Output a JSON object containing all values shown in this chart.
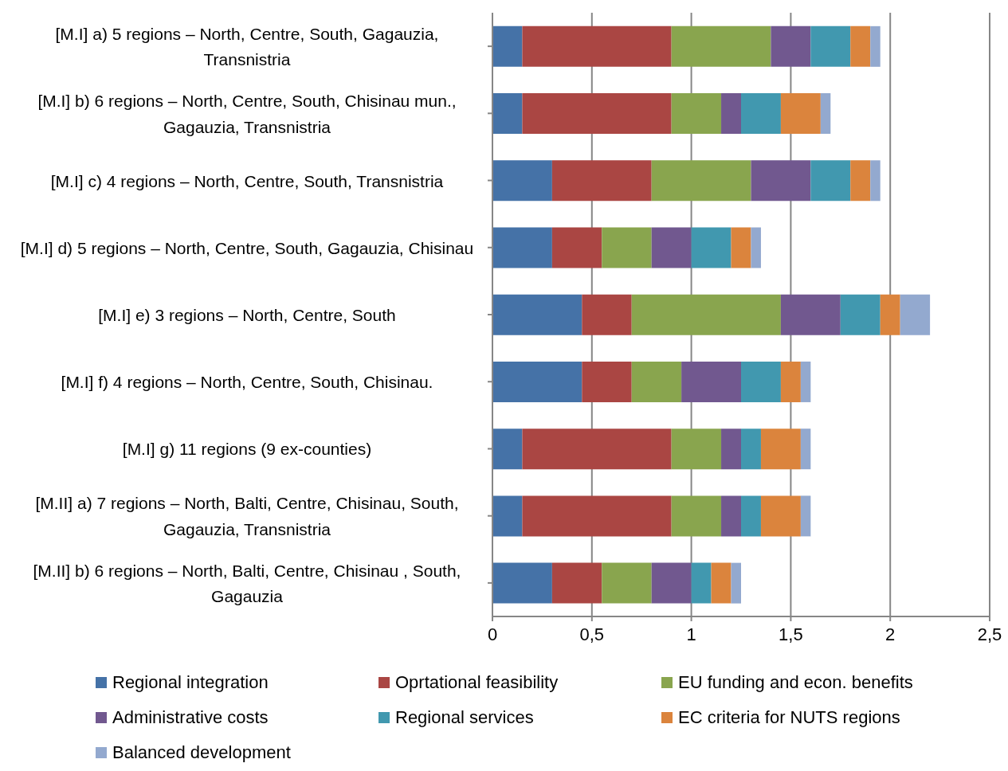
{
  "chart_data": {
    "type": "bar",
    "orientation": "horizontal",
    "stacked": true,
    "categories": [
      "[M.I]  a) 5 regions – North, Centre, South,  Gagauzia, Transnistria",
      "[M.I] b)  6 regions – North, Centre, South, Chisinau mun., Gagauzia, Transnistria",
      "[M.I] c)  4 regions – North, Centre, South, Transnistria",
      "[M.I] d)  5 regions – North, Centre, South, Gagauzia, Chisinau",
      "[M.I] e)  3 regions – North, Centre, South",
      "[M.I] f)   4 regions – North, Centre, South, Chisinau.",
      "[M.I] g)  11 regions (9 ex-counties)",
      "[M.II] a) 7 regions – North, Balti, Centre, Chisinau, South, Gagauzia, Transnistria",
      "[M.II]  b) 6 regions – North, Balti, Centre, Chisinau , South, Gagauzia"
    ],
    "series": [
      {
        "name": "Regional integration",
        "color": "#4572a7",
        "values": [
          0.15,
          0.15,
          0.3,
          0.3,
          0.45,
          0.45,
          0.15,
          0.15,
          0.3
        ]
      },
      {
        "name": "Oprtational feasibility",
        "color": "#aa4643",
        "values": [
          0.75,
          0.75,
          0.5,
          0.25,
          0.25,
          0.25,
          0.75,
          0.75,
          0.25
        ]
      },
      {
        "name": "EU funding and econ. benefits",
        "color": "#89a54e",
        "values": [
          0.5,
          0.25,
          0.5,
          0.25,
          0.75,
          0.25,
          0.25,
          0.25,
          0.25
        ]
      },
      {
        "name": "Administrative costs",
        "color": "#71588f",
        "values": [
          0.2,
          0.1,
          0.3,
          0.2,
          0.3,
          0.3,
          0.1,
          0.1,
          0.2
        ]
      },
      {
        "name": "Regional services",
        "color": "#4198af",
        "values": [
          0.2,
          0.2,
          0.2,
          0.2,
          0.2,
          0.2,
          0.1,
          0.1,
          0.1
        ]
      },
      {
        "name": "EC criteria for NUTS regions",
        "color": "#db843d",
        "values": [
          0.1,
          0.2,
          0.1,
          0.1,
          0.1,
          0.1,
          0.2,
          0.2,
          0.1
        ]
      },
      {
        "name": "Balanced development",
        "color": "#93a9cf",
        "values": [
          0.05,
          0.05,
          0.05,
          0.05,
          0.15,
          0.05,
          0.05,
          0.05,
          0.05
        ]
      }
    ],
    "xlim": [
      0,
      2.5
    ],
    "xticks": [
      {
        "value": 0,
        "label": "0"
      },
      {
        "value": 0.5,
        "label": "0,5"
      },
      {
        "value": 1,
        "label": "1"
      },
      {
        "value": 1.5,
        "label": "1,5"
      },
      {
        "value": 2,
        "label": "2"
      },
      {
        "value": 2.5,
        "label": "2,5"
      }
    ],
    "grid": "x",
    "legend": "bottom"
  }
}
